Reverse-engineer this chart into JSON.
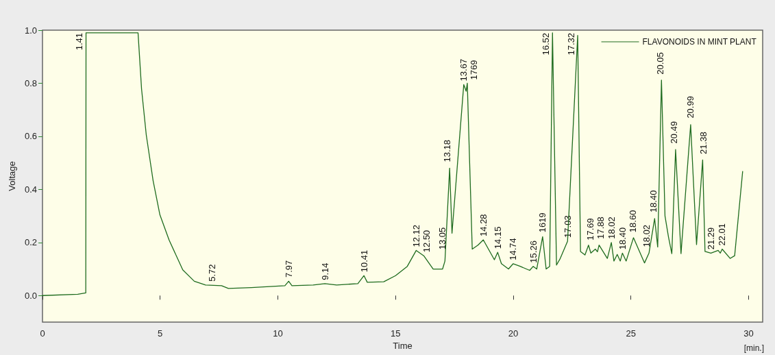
{
  "chart_data": {
    "type": "line",
    "xlabel": "Time",
    "ylabel": "Voltage",
    "legend": "top right",
    "grid": false,
    "marker": "none",
    "line_style": "solid",
    "xlim": [
      0,
      30.6
    ],
    "xticks": [
      0,
      5,
      10,
      15,
      20,
      25,
      30
    ],
    "ylim": [
      -0.1,
      1.0
    ],
    "yticks": [
      {
        "value": 0,
        "label": "0.0"
      },
      0.2,
      0.4,
      0.6,
      0.8,
      {
        "value": 1,
        "label": "1.0"
      }
    ],
    "series": [
      {
        "name": "FLAVONOIDS IN MINT PLANT",
        "color": "#1e6b1e",
        "x": [
          0,
          1.5,
          1.84,
          1.85,
          4.06,
          4.21,
          4.41,
          4.7,
          4.99,
          5.38,
          5.96,
          6.45,
          6.93,
          7.61,
          7.9,
          8.88,
          10.3,
          10.46,
          10.6,
          11.5,
          12.0,
          12.5,
          13.4,
          13.66,
          13.8,
          14.5,
          15.0,
          15.5,
          15.88,
          16.2,
          16.6,
          17.0,
          17.1,
          17.3,
          17.4,
          17.9,
          18.0,
          18.05,
          18.15,
          18.26,
          18.5,
          18.73,
          19.2,
          19.34,
          19.5,
          19.8,
          20.0,
          20.3,
          20.7,
          20.85,
          21.0,
          21.25,
          21.4,
          21.55,
          21.67,
          21.84,
          22.0,
          22.31,
          22.74,
          22.86,
          23.05,
          23.2,
          23.3,
          23.49,
          23.58,
          23.65,
          24.0,
          24.17,
          24.28,
          24.42,
          24.55,
          24.64,
          24.8,
          25.11,
          25.58,
          25.77,
          26.01,
          26.14,
          26.3,
          26.45,
          26.6,
          26.74,
          26.9,
          27.13,
          27.54,
          27.79,
          28.05,
          28.15,
          28.4,
          28.71,
          28.8,
          28.88,
          29.22,
          29.41,
          29.75
        ],
        "values": [
          0,
          0.005,
          0.01,
          0.99,
          0.99,
          0.778,
          0.605,
          0.433,
          0.304,
          0.209,
          0.097,
          0.054,
          0.04,
          0.037,
          0.027,
          0.03,
          0.037,
          0.054,
          0.037,
          0.04,
          0.045,
          0.04,
          0.045,
          0.075,
          0.05,
          0.052,
          0.075,
          0.11,
          0.17,
          0.15,
          0.1,
          0.1,
          0.13,
          0.48,
          0.235,
          0.795,
          0.77,
          0.8,
          0.5,
          0.175,
          0.19,
          0.21,
          0.135,
          0.163,
          0.12,
          0.1,
          0.12,
          0.11,
          0.095,
          0.11,
          0.1,
          0.222,
          0.1,
          0.11,
          0.99,
          0.115,
          0.14,
          0.205,
          0.98,
          0.166,
          0.153,
          0.19,
          0.16,
          0.175,
          0.165,
          0.19,
          0.14,
          0.2,
          0.13,
          0.155,
          0.13,
          0.16,
          0.13,
          0.218,
          0.123,
          0.16,
          0.29,
          0.183,
          0.812,
          0.3,
          0.22,
          0.158,
          0.55,
          0.158,
          0.644,
          0.192,
          0.511,
          0.166,
          0.16,
          0.17,
          0.16,
          0.175,
          0.14,
          0.15,
          0.468
        ]
      }
    ],
    "annotations": [
      {
        "text": "1.41",
        "x": 1.85,
        "y": 0.99
      },
      {
        "text": "5.72",
        "x": 7.22,
        "y": 0.04
      },
      {
        "text": "7.97",
        "x": 10.46,
        "y": 0.055
      },
      {
        "text": "9.14",
        "x": 12.0,
        "y": 0.045
      },
      {
        "text": "10.41",
        "x": 13.66,
        "y": 0.075
      },
      {
        "text": "12.12",
        "x": 15.88,
        "y": 0.17
      },
      {
        "text": "12.50",
        "x": 16.2,
        "y": 0.15
      },
      {
        "text": "13.05",
        "x": 16.98,
        "y": 0.16
      },
      {
        "text": "13.18",
        "x": 17.2,
        "y": 0.49
      },
      {
        "text": "13.67",
        "x": 17.9,
        "y": 0.795
      },
      {
        "text": "1769",
        "x": 18.05,
        "y": 0.8
      },
      {
        "text": "14.28",
        "x": 18.73,
        "y": 0.21
      },
      {
        "text": "14.15",
        "x": 19.34,
        "y": 0.163
      },
      {
        "text": "14.74",
        "x": 20.0,
        "y": 0.12
      },
      {
        "text": "15.26",
        "x": 20.85,
        "y": 0.11
      },
      {
        "text": "1619",
        "x": 21.25,
        "y": 0.225
      },
      {
        "text": "16.52",
        "x": 21.67,
        "y": 0.99
      },
      {
        "text": "17.03",
        "x": 22.31,
        "y": 0.205
      },
      {
        "text": "17.32",
        "x": 22.74,
        "y": 0.98
      },
      {
        "text": "17.69",
        "x": 23.29,
        "y": 0.195
      },
      {
        "text": "17.88",
        "x": 23.63,
        "y": 0.2
      },
      {
        "text": "18.02",
        "x": 24.17,
        "y": 0.2
      },
      {
        "text": "18.40",
        "x": 24.64,
        "y": 0.16
      },
      {
        "text": "18.60",
        "x": 25.04,
        "y": 0.225
      },
      {
        "text": "18.02",
        "x": 25.67,
        "y": 0.17
      },
      {
        "text": "18.40",
        "x": 25.96,
        "y": 0.3
      },
      {
        "text": "20.05",
        "x": 26.25,
        "y": 0.82
      },
      {
        "text": "20.49",
        "x": 26.84,
        "y": 0.56
      },
      {
        "text": "20.99",
        "x": 27.54,
        "y": 0.655
      },
      {
        "text": "21.38",
        "x": 28.08,
        "y": 0.52
      },
      {
        "text": "21.29",
        "x": 28.4,
        "y": 0.16
      },
      {
        "text": "22.01",
        "x": 28.88,
        "y": 0.175
      },
      "[min.]"
    ]
  }
}
